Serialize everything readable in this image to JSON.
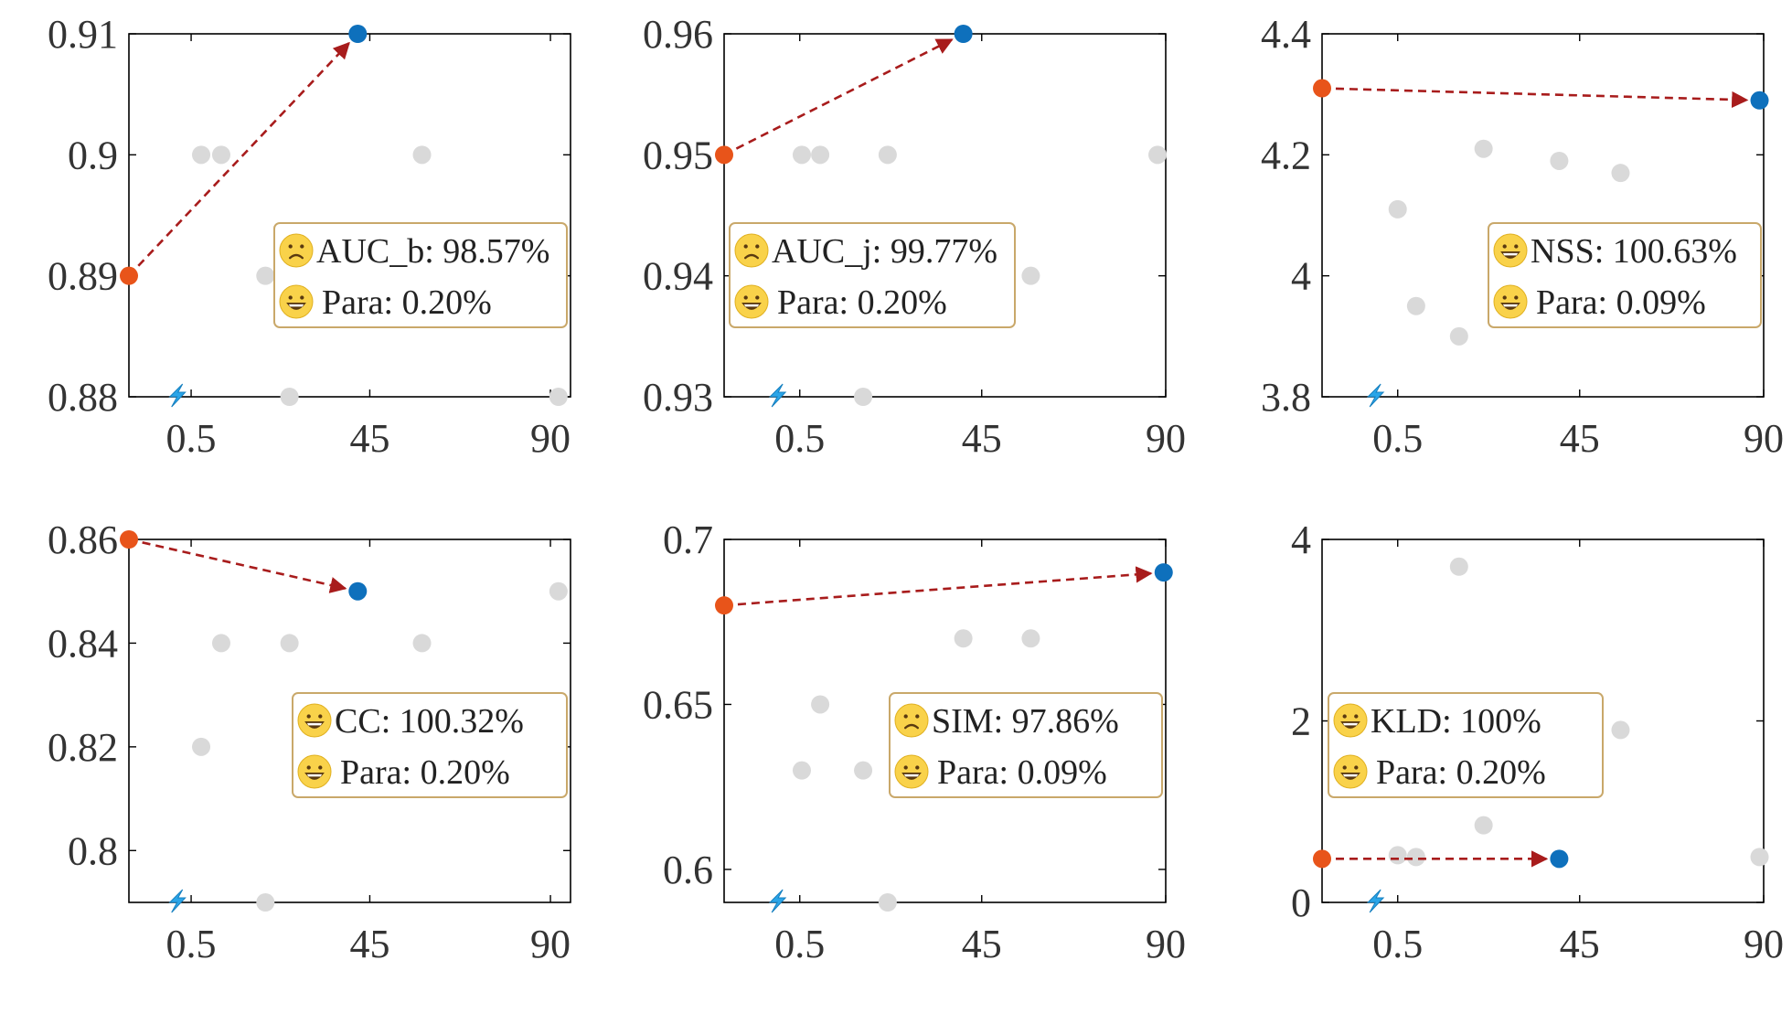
{
  "colors": {
    "baseline_point": "#E8541A",
    "ours_point": "#0E70BC",
    "other_point": "#D9D9D9",
    "arrow": "#A81C1C",
    "legend_border": "#C9A86A",
    "legend_fill": "#FFFFFF",
    "bolt": "#2AA5E8",
    "emoji_face": "#F9D24A",
    "axis": "#000000"
  },
  "icons": {
    "sad": "sad-face-icon",
    "happy": "grinning-face-icon",
    "bolt": "lightning-bolt-icon"
  },
  "chart_data": [
    {
      "type": "scatter",
      "id": "auc-b",
      "xticks": [
        0.5,
        45,
        90
      ],
      "xtick_labels": [
        "0.5",
        "45",
        "90"
      ],
      "yticks": [
        0.88,
        0.89,
        0.9,
        0.91
      ],
      "ytick_labels": [
        "0.88",
        "0.89",
        "0.9",
        "0.91"
      ],
      "xlim": [
        -15,
        95
      ],
      "ylim": [
        0.88,
        0.91
      ],
      "baseline": {
        "x": -15,
        "y": 0.89
      },
      "ours": {
        "x": 42,
        "y": 0.91
      },
      "others": [
        {
          "x": 3,
          "y": 0.9
        },
        {
          "x": 8,
          "y": 0.9
        },
        {
          "x": 19,
          "y": 0.89
        },
        {
          "x": 25,
          "y": 0.88
        },
        {
          "x": 58,
          "y": 0.9
        },
        {
          "x": 92,
          "y": 0.88
        }
      ],
      "bolt_x": -3,
      "legend": {
        "position": "middle-right",
        "metric_icon": "sad-face-icon",
        "metric_text": "AUC_b: 98.57%",
        "para_icon": "grinning-face-icon",
        "para_text": "Para: 0.20%"
      }
    },
    {
      "type": "scatter",
      "id": "auc-j",
      "xticks": [
        0.5,
        45,
        90
      ],
      "xtick_labels": [
        "0.5",
        "45",
        "90"
      ],
      "yticks": [
        0.93,
        0.94,
        0.95,
        0.96
      ],
      "ytick_labels": [
        "0.93",
        "0.94",
        "0.95",
        "0.96"
      ],
      "xlim": [
        -18,
        90
      ],
      "ylim": [
        0.93,
        0.96
      ],
      "baseline": {
        "x": -18,
        "y": 0.95
      },
      "ours": {
        "x": 40.5,
        "y": 0.96
      },
      "others": [
        {
          "x": 1,
          "y": 0.95
        },
        {
          "x": 5.5,
          "y": 0.95
        },
        {
          "x": 22,
          "y": 0.95
        },
        {
          "x": 57,
          "y": 0.94
        },
        {
          "x": 16,
          "y": 0.93
        },
        {
          "x": 88,
          "y": 0.95
        }
      ],
      "bolt_x": -5,
      "legend": {
        "position": "middle-left",
        "metric_icon": "sad-face-icon",
        "metric_text": "AUC_j: 99.77%",
        "para_icon": "grinning-face-icon",
        "para_text": "Para: 0.20%"
      }
    },
    {
      "type": "scatter",
      "id": "nss",
      "xticks": [
        0.5,
        45,
        90
      ],
      "xtick_labels": [
        "0.5",
        "45",
        "90"
      ],
      "yticks": [
        3.8,
        4.0,
        4.2,
        4.4
      ],
      "ytick_labels": [
        "3.8",
        "4",
        "4.2",
        "4.4"
      ],
      "xlim": [
        -18,
        90
      ],
      "ylim": [
        3.8,
        4.4
      ],
      "baseline": {
        "x": -18,
        "y": 4.31
      },
      "ours": {
        "x": 89,
        "y": 4.29
      },
      "others": [
        {
          "x": 0.5,
          "y": 4.11
        },
        {
          "x": 5,
          "y": 3.95
        },
        {
          "x": 15.5,
          "y": 3.9
        },
        {
          "x": 21.5,
          "y": 4.21
        },
        {
          "x": 40,
          "y": 4.19
        },
        {
          "x": 55,
          "y": 4.17
        }
      ],
      "bolt_x": -5,
      "legend": {
        "position": "middle-right",
        "metric_icon": "grinning-face-icon",
        "metric_text": "NSS: 100.63%",
        "para_icon": "grinning-face-icon",
        "para_text": "Para: 0.09%"
      }
    },
    {
      "type": "scatter",
      "id": "cc",
      "xticks": [
        0.5,
        45,
        90
      ],
      "xtick_labels": [
        "0.5",
        "45",
        "90"
      ],
      "yticks": [
        0.8,
        0.82,
        0.84,
        0.86
      ],
      "ytick_labels": [
        "0.8",
        "0.82",
        "0.84",
        "0.86"
      ],
      "xlim": [
        -15,
        95
      ],
      "ylim": [
        0.79,
        0.86
      ],
      "baseline": {
        "x": -15,
        "y": 0.86
      },
      "ours": {
        "x": 42,
        "y": 0.85
      },
      "others": [
        {
          "x": 3,
          "y": 0.82
        },
        {
          "x": 8,
          "y": 0.84
        },
        {
          "x": 25,
          "y": 0.84
        },
        {
          "x": 58,
          "y": 0.84
        },
        {
          "x": 19,
          "y": 0.79
        },
        {
          "x": 92,
          "y": 0.85
        }
      ],
      "bolt_x": -3,
      "legend": {
        "position": "middle-right",
        "metric_icon": "grinning-face-icon",
        "metric_text": "CC: 100.32%",
        "para_icon": "grinning-face-icon",
        "para_text": "Para: 0.20%"
      }
    },
    {
      "type": "scatter",
      "id": "sim",
      "xticks": [
        0.5,
        45,
        90
      ],
      "xtick_labels": [
        "0.5",
        "45",
        "90"
      ],
      "yticks": [
        0.6,
        0.65,
        0.7
      ],
      "ytick_labels": [
        "0.6",
        "0.65",
        "0.7"
      ],
      "xlim": [
        -18,
        90
      ],
      "ylim": [
        0.59,
        0.7
      ],
      "baseline": {
        "x": -18,
        "y": 0.68
      },
      "ours": {
        "x": 89.5,
        "y": 0.69
      },
      "others": [
        {
          "x": 1,
          "y": 0.63
        },
        {
          "x": 5.5,
          "y": 0.65
        },
        {
          "x": 16,
          "y": 0.63
        },
        {
          "x": 22,
          "y": 0.59
        },
        {
          "x": 40.5,
          "y": 0.67
        },
        {
          "x": 57,
          "y": 0.67
        }
      ],
      "bolt_x": -5,
      "legend": {
        "position": "middle-right",
        "metric_icon": "sad-face-icon",
        "metric_text": "SIM: 97.86%",
        "para_icon": "grinning-face-icon",
        "para_text": "Para: 0.09%"
      }
    },
    {
      "type": "scatter",
      "id": "kld",
      "xticks": [
        0.5,
        45,
        90
      ],
      "xtick_labels": [
        "0.5",
        "45",
        "90"
      ],
      "yticks": [
        0,
        2,
        4
      ],
      "ytick_labels": [
        "0",
        "2",
        "4"
      ],
      "xlim": [
        -18,
        90
      ],
      "ylim": [
        0,
        4
      ],
      "baseline": {
        "x": -18,
        "y": 0.48
      },
      "ours": {
        "x": 40,
        "y": 0.48
      },
      "others": [
        {
          "x": 0.5,
          "y": 0.52
        },
        {
          "x": 5,
          "y": 0.5
        },
        {
          "x": 15.5,
          "y": 3.7
        },
        {
          "x": 21.5,
          "y": 0.85
        },
        {
          "x": 55,
          "y": 1.9
        },
        {
          "x": 89,
          "y": 0.5
        }
      ],
      "bolt_x": -5,
      "legend": {
        "position": "middle-left",
        "metric_icon": "grinning-face-icon",
        "metric_text": "KLD: 100%",
        "para_icon": "grinning-face-icon",
        "para_text": "Para: 0.20%"
      }
    }
  ]
}
